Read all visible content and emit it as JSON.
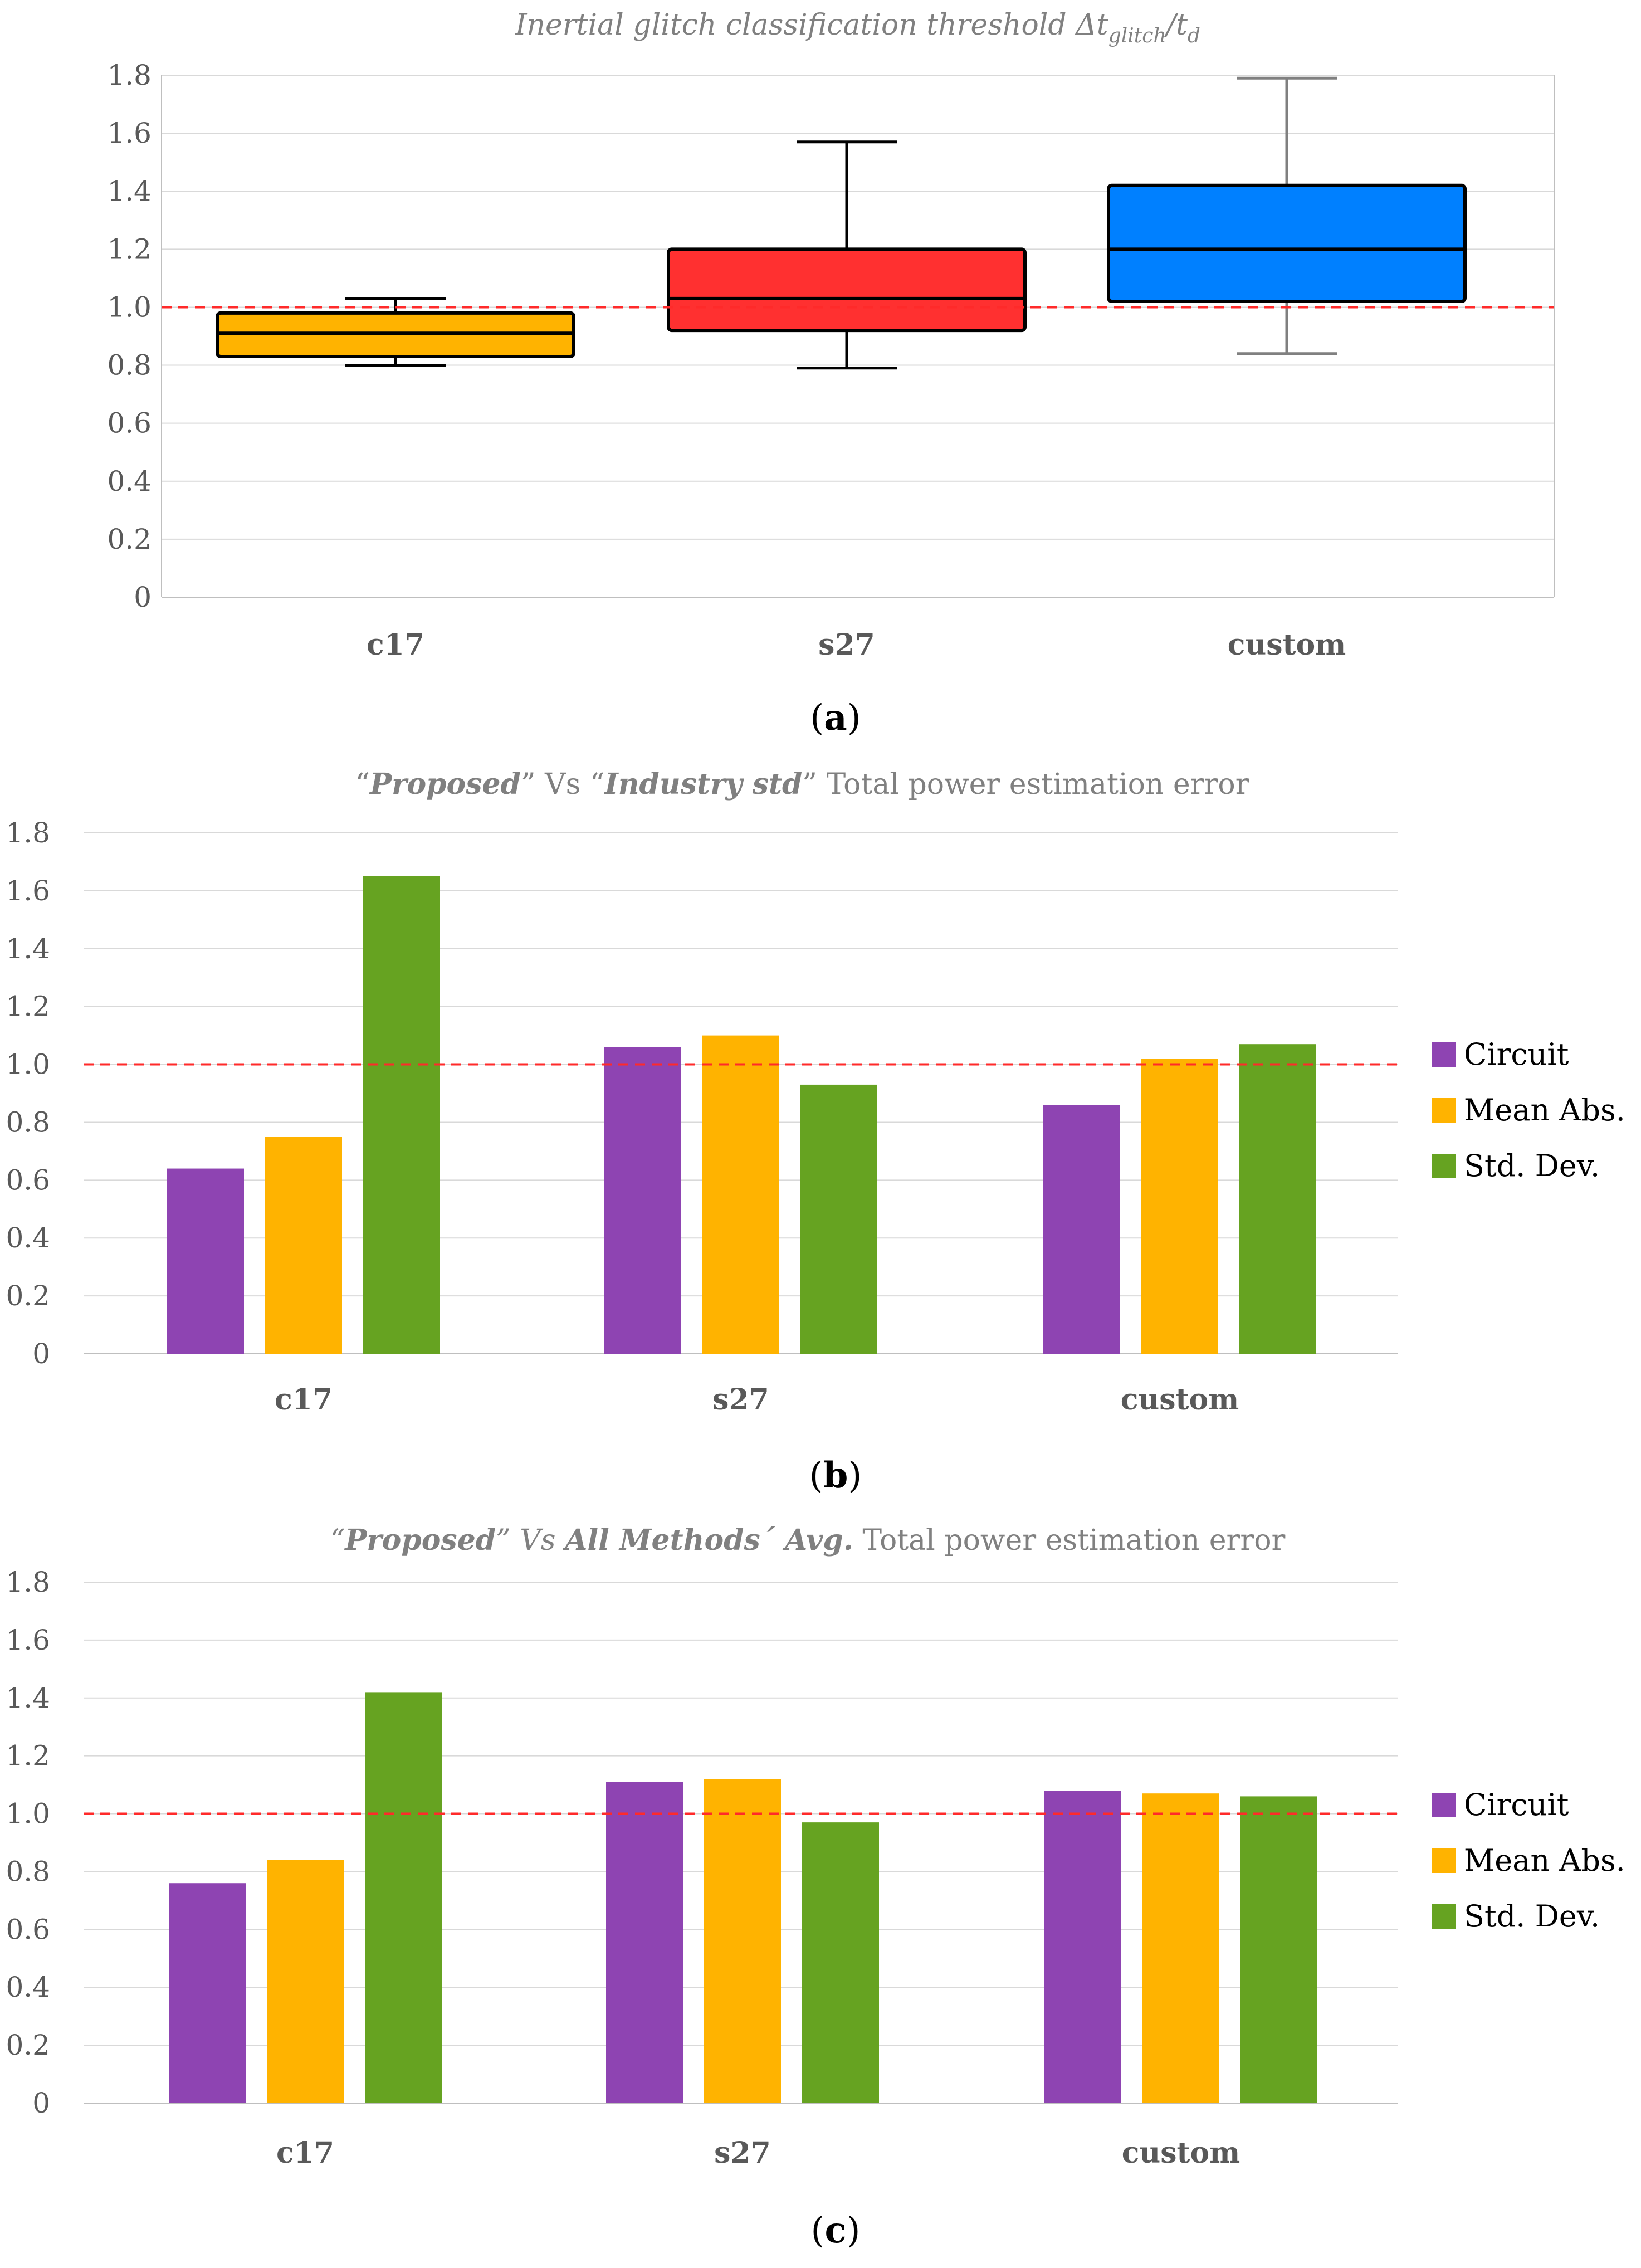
{
  "chart_data": [
    {
      "id": "a",
      "type": "box",
      "panel_label": "a",
      "title": {
        "text": "Inertial glitch classification threshold Δt",
        "sub1": "glitch",
        "slash": "/t",
        "sub2": "d"
      },
      "categories": [
        "c17",
        "s27",
        "custom"
      ],
      "ylim": [
        0,
        1.8
      ],
      "yticks": [
        "0",
        "0.2",
        "0.4",
        "0.6",
        "0.8",
        "1.0",
        "1.2",
        "1.4",
        "1.6",
        "1.8"
      ],
      "reference_line": 1.0,
      "boxes": [
        {
          "category": "c17",
          "min": 0.8,
          "q1": 0.83,
          "median": 0.91,
          "q3": 0.98,
          "max": 1.03,
          "color": "#FFB300",
          "whisker_color": "#000000"
        },
        {
          "category": "s27",
          "min": 0.79,
          "q1": 0.92,
          "median": 1.03,
          "q3": 1.2,
          "max": 1.57,
          "color": "#FF3030",
          "whisker_color": "#000000"
        },
        {
          "category": "custom",
          "min": 0.84,
          "q1": 1.02,
          "median": 1.2,
          "q3": 1.42,
          "max": 1.79,
          "color": "#0080FF",
          "whisker_color": "#808080"
        }
      ]
    },
    {
      "id": "b",
      "type": "bar",
      "panel_label": "b",
      "title": {
        "q1": "“",
        "bold1": "Proposed",
        "q2": "” Vs “",
        "bold2": "Industry std",
        "q3": "” Total power estimation error"
      },
      "categories": [
        "c17",
        "s27",
        "custom"
      ],
      "ylim": [
        0,
        1.8
      ],
      "yticks": [
        "0",
        "0.2",
        "0.4",
        "0.6",
        "0.8",
        "1.0",
        "1.2",
        "1.4",
        "1.6",
        "1.8"
      ],
      "reference_line": 1.0,
      "series": [
        {
          "name": "Circuit",
          "color": "#8E44B2",
          "values": [
            0.64,
            1.06,
            0.86
          ]
        },
        {
          "name": "Mean Abs.",
          "color": "#FFB300",
          "values": [
            0.75,
            1.1,
            1.02
          ]
        },
        {
          "name": "Std. Dev.",
          "color": "#66A321",
          "values": [
            1.65,
            0.93,
            1.07
          ]
        }
      ],
      "legend": "right"
    },
    {
      "id": "c",
      "type": "bar",
      "panel_label": "c",
      "title": {
        "q1": "“",
        "bold1": "Proposed",
        "q2": "” Vs  ",
        "bold2": "All Methods´ Avg.",
        "q3": "  Total power estimation error"
      },
      "categories": [
        "c17",
        "s27",
        "custom"
      ],
      "ylim": [
        0,
        1.8
      ],
      "yticks": [
        "0",
        "0.2",
        "0.4",
        "0.6",
        "0.8",
        "1.0",
        "1.2",
        "1.4",
        "1.6",
        "1.8"
      ],
      "reference_line": 1.0,
      "series": [
        {
          "name": "Circuit",
          "color": "#8E44B2",
          "values": [
            0.76,
            1.11,
            1.08
          ]
        },
        {
          "name": "Mean Abs.",
          "color": "#FFB300",
          "values": [
            0.84,
            1.12,
            1.07
          ]
        },
        {
          "name": "Std. Dev.",
          "color": "#66A321",
          "values": [
            1.42,
            0.97,
            1.06
          ]
        }
      ],
      "legend": "right"
    }
  ]
}
